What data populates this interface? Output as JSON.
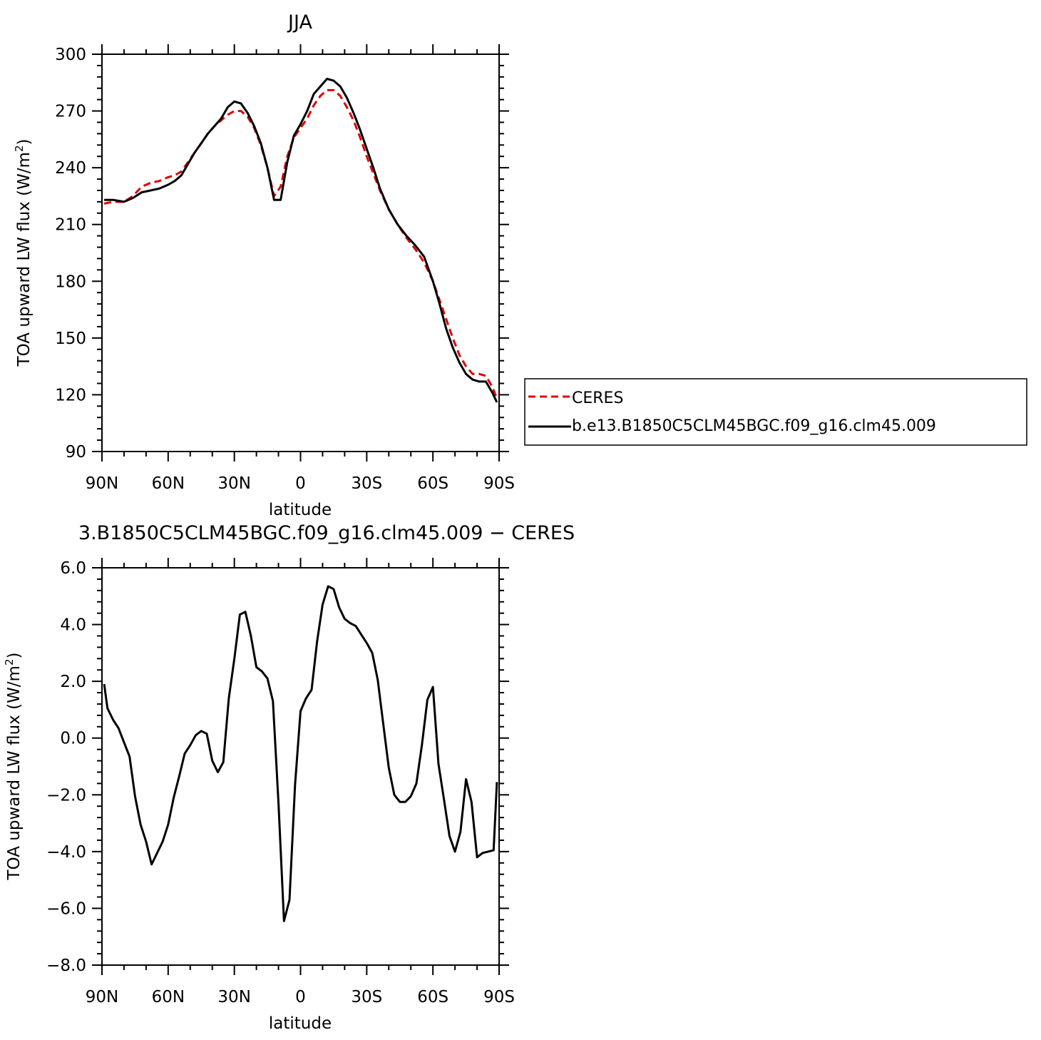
{
  "chart_data": [
    {
      "type": "line",
      "title": "JJA",
      "xlabel": "latitude",
      "ylabel": "TOA upward LW flux (W/m²)",
      "ylabel_main": "TOA upward LW flux (W/m",
      "ylabel_sup": "2",
      "ylabel_close": ")",
      "ylim": [
        90,
        300
      ],
      "yticks": [
        90,
        120,
        150,
        180,
        210,
        240,
        270,
        300
      ],
      "ytick_labels": [
        "90",
        "120",
        "150",
        "180",
        "210",
        "240",
        "270",
        "300"
      ],
      "xlim": [
        90,
        -90
      ],
      "xticks": [
        90,
        60,
        30,
        0,
        -30,
        -60,
        -90
      ],
      "xtick_labels": [
        "90N",
        "60N",
        "30N",
        "0",
        "30S",
        "60S",
        "90S"
      ],
      "legend_position": "right",
      "series": [
        {
          "name": "CERES",
          "color": "#e00000",
          "dash": "dashed",
          "x": [
            89,
            85,
            80,
            76,
            72,
            68,
            64,
            60,
            57,
            54,
            51,
            48,
            45,
            42,
            39,
            36,
            33,
            30,
            27,
            24,
            21,
            18,
            15,
            12,
            9,
            6,
            3,
            0,
            -3,
            -6,
            -9,
            -12,
            -15,
            -18,
            -21,
            -24,
            -27,
            -30,
            -33,
            -36,
            -40,
            -44,
            -48,
            -52,
            -56,
            -60,
            -63,
            -66,
            -69,
            -72,
            -75,
            -78,
            -81,
            -84,
            -87,
            -89
          ],
          "y": [
            221,
            222,
            222,
            225,
            230,
            232,
            233,
            235,
            236,
            238,
            243,
            248,
            253,
            258,
            262,
            265,
            268,
            270,
            270,
            267,
            261,
            252,
            240,
            225,
            230,
            246,
            256,
            261,
            266,
            273,
            278,
            281,
            281,
            278,
            272,
            265,
            256,
            246,
            237,
            228,
            218,
            210,
            203,
            197,
            190,
            180,
            170,
            160,
            150,
            141,
            135,
            131,
            131,
            130,
            124,
            118
          ]
        },
        {
          "name": "b.e13.B1850C5CLM45BGC.f09_g16.clm45.009",
          "color": "#000000",
          "dash": "solid",
          "x": [
            89,
            85,
            80,
            76,
            72,
            68,
            64,
            60,
            57,
            54,
            51,
            48,
            45,
            42,
            39,
            36,
            33,
            30,
            27,
            24,
            21,
            18,
            15,
            12,
            9,
            6,
            3,
            0,
            -3,
            -6,
            -9,
            -12,
            -15,
            -18,
            -21,
            -24,
            -27,
            -30,
            -33,
            -36,
            -40,
            -44,
            -48,
            -52,
            -56,
            -60,
            -63,
            -66,
            -69,
            -72,
            -75,
            -78,
            -81,
            -84,
            -87,
            -89
          ],
          "y": [
            223,
            223,
            222,
            224,
            227,
            228,
            229,
            231,
            233,
            236,
            242,
            248,
            253,
            258,
            262,
            266,
            272,
            275,
            274,
            269,
            262,
            253,
            240,
            223,
            223,
            243,
            257,
            263,
            270,
            279,
            283,
            287,
            286,
            283,
            277,
            269,
            260,
            250,
            240,
            229,
            218,
            210,
            204,
            199,
            193,
            180,
            168,
            155,
            145,
            137,
            131,
            128,
            127,
            127,
            121,
            116
          ]
        }
      ]
    },
    {
      "type": "line",
      "title": "3.B1850C5CLM45BGC.f09_g16.clm45.009 − CERES",
      "xlabel": "latitude",
      "ylabel": "TOA upward LW flux (W/m²)",
      "ylabel_main": "TOA upward LW flux (W/m",
      "ylabel_sup": "2",
      "ylabel_close": ")",
      "ylim": [
        -8,
        6
      ],
      "yticks": [
        -8,
        -6,
        -4,
        -2,
        0,
        2,
        4,
        6
      ],
      "ytick_labels": [
        "−8.0",
        "−6.0",
        "−4.0",
        "−2.0",
        "0.0",
        "2.0",
        "4.0",
        "6.0"
      ],
      "xlim": [
        90,
        -90
      ],
      "xticks": [
        90,
        60,
        30,
        0,
        -30,
        -60,
        -90
      ],
      "xtick_labels": [
        "90N",
        "60N",
        "30N",
        "0",
        "30S",
        "60S",
        "90S"
      ],
      "series": [
        {
          "color": "#000000",
          "dash": "solid",
          "x": [
            89,
            87.5,
            85,
            82.5,
            80,
            77.5,
            75,
            72.5,
            70,
            67.5,
            65,
            62.5,
            60,
            57.5,
            55,
            52.5,
            50,
            47.5,
            45,
            42.5,
            40,
            37.5,
            35,
            32.5,
            30,
            27.5,
            25,
            22.5,
            20,
            17.5,
            15,
            12.5,
            10,
            7.5,
            5,
            2.5,
            0,
            -2.5,
            -5,
            -7.5,
            -10,
            -12.5,
            -15,
            -17.5,
            -20,
            -22.5,
            -25,
            -27.5,
            -30,
            -32.5,
            -35,
            -37.5,
            -40,
            -42.5,
            -45,
            -47.5,
            -50,
            -52.5,
            -55,
            -57.5,
            -60,
            -62.5,
            -65,
            -67.5,
            -70,
            -72.5,
            -75,
            -77.5,
            -80,
            -82.5,
            -85,
            -87.5,
            -89
          ],
          "y": [
            1.9,
            1.05,
            0.65,
            0.35,
            -0.15,
            -0.65,
            -2.05,
            -3.05,
            -3.65,
            -4.45,
            -4.05,
            -3.65,
            -3.05,
            -2.1,
            -1.35,
            -0.55,
            -0.25,
            0.1,
            0.25,
            0.15,
            -0.8,
            -1.2,
            -0.85,
            1.4,
            2.8,
            4.35,
            4.45,
            3.6,
            2.5,
            2.35,
            2.1,
            1.3,
            -2.3,
            -6.45,
            -5.7,
            -1.65,
            0.95,
            1.4,
            1.7,
            3.4,
            4.7,
            5.35,
            5.25,
            4.6,
            4.2,
            4.05,
            3.95,
            3.65,
            3.35,
            3.0,
            2.05,
            0.5,
            -1.05,
            -2.0,
            -2.25,
            -2.25,
            -2.05,
            -1.6,
            -0.25,
            1.35,
            1.8,
            -0.9,
            -2.15,
            -3.45,
            -4.0,
            -3.3,
            -1.45,
            -2.25,
            -4.2,
            -4.05,
            -4.0,
            -3.95,
            -1.55
          ]
        }
      ]
    }
  ]
}
